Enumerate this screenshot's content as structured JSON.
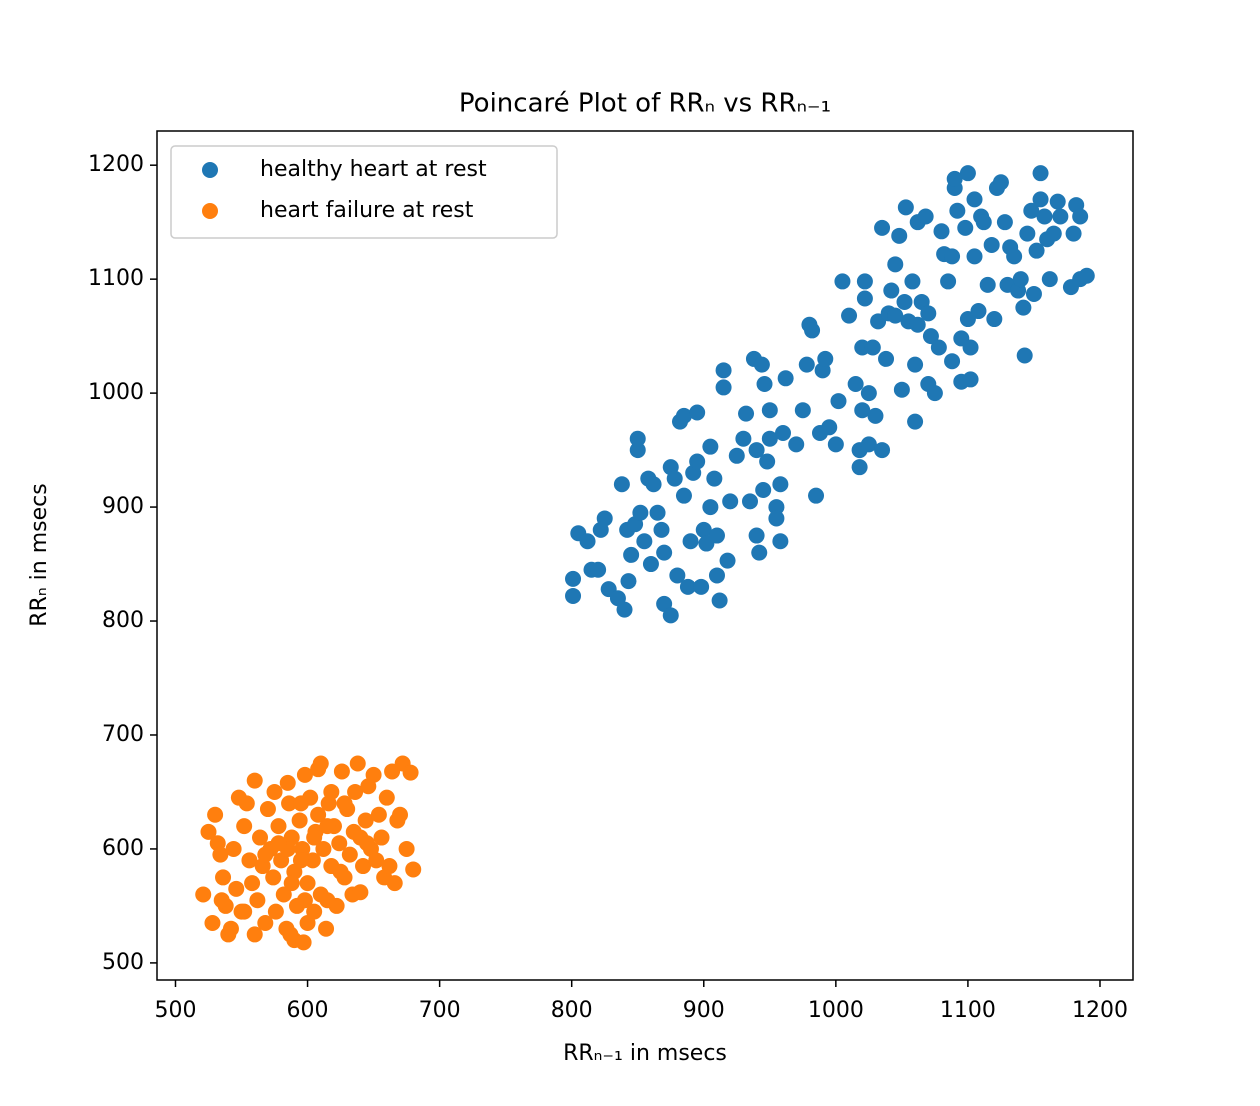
{
  "chart_data": {
    "type": "scatter",
    "title": "Poincaré Plot of RRₙ vs RRₙ₋₁",
    "x_label": "RRₙ₋₁ in msecs",
    "y_label": "RRₙ in msecs",
    "xlim": [
      486,
      1225
    ],
    "ylim": [
      485,
      1230
    ],
    "xticks": [
      500,
      600,
      700,
      800,
      900,
      1000,
      1100,
      1200
    ],
    "yticks": [
      500,
      600,
      700,
      800,
      900,
      1000,
      1100,
      1200
    ],
    "grid": false,
    "legend": "upper left",
    "series": [
      {
        "name": "healthy heart at rest",
        "color": "#1f77b4",
        "x": [
          801,
          801,
          805,
          812,
          815,
          820,
          822,
          825,
          828,
          835,
          838,
          840,
          842,
          843,
          845,
          848,
          850,
          850,
          852,
          855,
          858,
          860,
          862,
          865,
          868,
          870,
          870,
          875,
          875,
          878,
          880,
          882,
          885,
          885,
          888,
          890,
          892,
          895,
          895,
          898,
          900,
          902,
          905,
          905,
          908,
          910,
          910,
          912,
          915,
          915,
          918,
          920,
          925,
          930,
          932,
          935,
          938,
          940,
          940,
          942,
          944,
          945,
          946,
          948,
          950,
          950,
          955,
          955,
          958,
          958,
          960,
          962,
          970,
          975,
          978,
          980,
          982,
          985,
          988,
          990,
          992,
          995,
          1000,
          1002,
          1005,
          1010,
          1015,
          1018,
          1018,
          1020,
          1020,
          1022,
          1022,
          1025,
          1025,
          1028,
          1030,
          1032,
          1035,
          1035,
          1038,
          1040,
          1042,
          1045,
          1045,
          1048,
          1050,
          1052,
          1053,
          1055,
          1058,
          1060,
          1060,
          1062,
          1062,
          1065,
          1068,
          1070,
          1070,
          1072,
          1075,
          1078,
          1080,
          1082,
          1085,
          1088,
          1088,
          1090,
          1090,
          1092,
          1095,
          1095,
          1098,
          1100,
          1100,
          1102,
          1102,
          1105,
          1105,
          1108,
          1110,
          1112,
          1115,
          1118,
          1120,
          1122,
          1125,
          1128,
          1130,
          1132,
          1135,
          1138,
          1140,
          1142,
          1143,
          1145,
          1148,
          1150,
          1152,
          1155,
          1155,
          1158,
          1160,
          1162,
          1165,
          1168,
          1170,
          1178,
          1180,
          1182,
          1185,
          1185,
          1190
        ],
        "values": [
          822,
          837,
          877,
          870,
          845,
          845,
          880,
          890,
          828,
          820,
          920,
          810,
          880,
          835,
          858,
          885,
          950,
          960,
          895,
          870,
          925,
          850,
          920,
          895,
          880,
          860,
          815,
          805,
          935,
          925,
          840,
          975,
          910,
          980,
          830,
          870,
          930,
          983,
          940,
          830,
          880,
          868,
          953,
          900,
          925,
          840,
          875,
          818,
          1005,
          1020,
          853,
          905,
          945,
          960,
          982,
          905,
          1030,
          875,
          950,
          860,
          1025,
          915,
          1008,
          940,
          960,
          985,
          900,
          890,
          920,
          870,
          965,
          1013,
          955,
          985,
          1025,
          1060,
          1055,
          910,
          965,
          1020,
          1030,
          970,
          955,
          993,
          1098,
          1068,
          1008,
          935,
          950,
          985,
          1040,
          1083,
          1098,
          1000,
          955,
          1040,
          980,
          1063,
          1145,
          950,
          1030,
          1070,
          1090,
          1068,
          1113,
          1138,
          1003,
          1080,
          1163,
          1063,
          1098,
          975,
          1025,
          1150,
          1060,
          1080,
          1155,
          1008,
          1070,
          1050,
          1000,
          1040,
          1142,
          1122,
          1098,
          1028,
          1120,
          1180,
          1188,
          1160,
          1048,
          1010,
          1145,
          1193,
          1065,
          1040,
          1012,
          1120,
          1170,
          1072,
          1155,
          1150,
          1095,
          1130,
          1065,
          1180,
          1185,
          1150,
          1095,
          1128,
          1120,
          1090,
          1100,
          1075,
          1033,
          1140,
          1160,
          1087,
          1125,
          1193,
          1170,
          1155,
          1135,
          1100,
          1140,
          1168,
          1155,
          1093,
          1140,
          1165,
          1155,
          1100,
          1103
        ]
      },
      {
        "name": "heart failure at rest",
        "color": "#ff7f0e",
        "x": [
          521,
          525,
          528,
          530,
          532,
          534,
          536,
          538,
          540,
          542,
          544,
          546,
          548,
          550,
          552,
          554,
          556,
          558,
          560,
          562,
          564,
          566,
          568,
          570,
          572,
          574,
          576,
          578,
          580,
          582,
          584,
          585,
          586,
          588,
          590,
          590,
          592,
          594,
          596,
          598,
          600,
          600,
          602,
          604,
          606,
          608,
          610,
          610,
          612,
          614,
          616,
          618,
          620,
          622,
          624,
          626,
          628,
          630,
          632,
          634,
          636,
          638,
          640,
          642,
          644,
          646,
          648,
          650,
          652,
          654,
          656,
          658,
          660,
          662,
          664,
          666,
          668,
          670,
          672,
          675,
          678,
          680,
          535,
          575,
          595,
          605,
          615,
          625,
          635,
          645,
          585,
          595,
          605,
          615,
          598,
          588,
          578,
          568,
          608,
          618,
          628,
          640,
          560,
          552,
          587,
          597
        ],
        "values": [
          560,
          615,
          535,
          630,
          605,
          595,
          575,
          550,
          525,
          530,
          600,
          565,
          645,
          545,
          620,
          640,
          590,
          570,
          660,
          555,
          610,
          585,
          535,
          635,
          600,
          575,
          545,
          620,
          590,
          560,
          530,
          658,
          640,
          610,
          580,
          520,
          550,
          625,
          600,
          665,
          570,
          535,
          645,
          590,
          615,
          670,
          560,
          675,
          600,
          530,
          640,
          585,
          620,
          550,
          605,
          668,
          575,
          635,
          595,
          560,
          650,
          675,
          610,
          585,
          625,
          655,
          600,
          665,
          590,
          630,
          610,
          575,
          645,
          585,
          668,
          570,
          625,
          630,
          675,
          600,
          667,
          582,
          555,
          650,
          640,
          545,
          555,
          580,
          615,
          605,
          600,
          590,
          610,
          620,
          555,
          570,
          605,
          595,
          630,
          650,
          640,
          562,
          525,
          545,
          525,
          518
        ]
      }
    ]
  }
}
